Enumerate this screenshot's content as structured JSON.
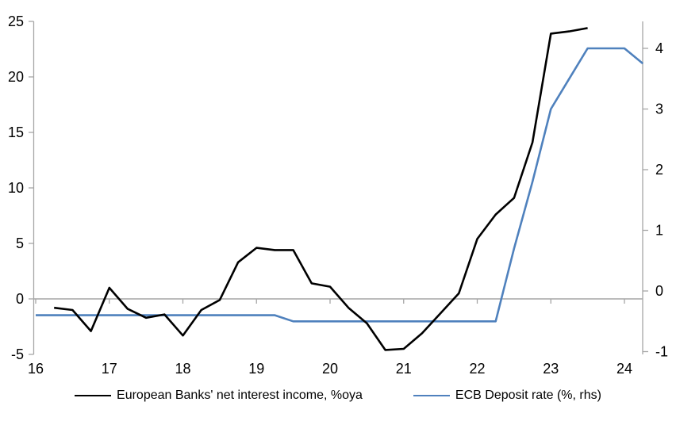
{
  "colors": {
    "axis": "#a6a6a6",
    "zero_line": "#a6a6a6",
    "nii_line": "#000000",
    "ecb_line": "#4f81bd",
    "background": "#ffffff",
    "label_text": "#000000"
  },
  "chart_data": {
    "type": "line",
    "title": "",
    "legend_position": "bottom",
    "grid": "zero-line-only",
    "x_axis": {
      "tick_labels": [
        "16",
        "17",
        "18",
        "19",
        "20",
        "21",
        "22",
        "23",
        "24"
      ],
      "tick_values": [
        16,
        17,
        18,
        19,
        20,
        21,
        22,
        23,
        24
      ],
      "range": [
        16,
        24.27
      ]
    },
    "y_axis_left": {
      "tick_labels": [
        "-5",
        "0",
        "5",
        "10",
        "15",
        "20",
        "25"
      ],
      "tick_values": [
        -5,
        0,
        5,
        10,
        15,
        20,
        25
      ],
      "range": [
        -5,
        25
      ]
    },
    "y_axis_right": {
      "tick_labels": [
        "-1",
        "0",
        "1",
        "2",
        "3",
        "4"
      ],
      "tick_values": [
        -1,
        0,
        1,
        2,
        3,
        4
      ],
      "range": [
        -1.05,
        4.45
      ]
    },
    "series": [
      {
        "name": "European Banks' net interest income, %oya",
        "axis": "left",
        "color": "#000000",
        "x": [
          16.25,
          16.5,
          16.75,
          17.0,
          17.25,
          17.5,
          17.75,
          18.0,
          18.25,
          18.5,
          18.75,
          19.0,
          19.25,
          19.5,
          19.75,
          20.0,
          20.25,
          20.5,
          20.75,
          21.0,
          21.25,
          21.5,
          21.75,
          22.0,
          22.25,
          22.5,
          22.75,
          23.0,
          23.25,
          23.5
        ],
        "values": [
          -0.8,
          -1.0,
          -2.9,
          1.0,
          -0.9,
          -1.7,
          -1.4,
          -3.3,
          -1.0,
          -0.1,
          3.3,
          4.6,
          4.4,
          4.4,
          1.4,
          1.1,
          -0.8,
          -2.2,
          -4.6,
          -4.5,
          -3.1,
          -1.3,
          0.5,
          5.4,
          7.6,
          9.1,
          14.1,
          23.9,
          24.1,
          24.4
        ]
      },
      {
        "name": "ECB Deposit rate (%, rhs)",
        "axis": "right",
        "color": "#4f81bd",
        "x": [
          16.0,
          16.25,
          16.5,
          16.75,
          17.0,
          17.25,
          17.5,
          17.75,
          18.0,
          18.25,
          18.5,
          18.75,
          19.0,
          19.25,
          19.5,
          19.75,
          20.0,
          20.25,
          20.5,
          20.75,
          21.0,
          21.25,
          21.5,
          21.75,
          22.0,
          22.25,
          22.5,
          22.75,
          23.0,
          23.25,
          23.5,
          23.75,
          24.0,
          24.25
        ],
        "values": [
          -0.4,
          -0.4,
          -0.4,
          -0.4,
          -0.4,
          -0.4,
          -0.4,
          -0.4,
          -0.4,
          -0.4,
          -0.4,
          -0.4,
          -0.4,
          -0.4,
          -0.5,
          -0.5,
          -0.5,
          -0.5,
          -0.5,
          -0.5,
          -0.5,
          -0.5,
          -0.5,
          -0.5,
          -0.5,
          -0.5,
          0.7,
          1.8,
          3.0,
          3.5,
          4.0,
          4.0,
          4.0,
          3.75
        ]
      }
    ]
  }
}
